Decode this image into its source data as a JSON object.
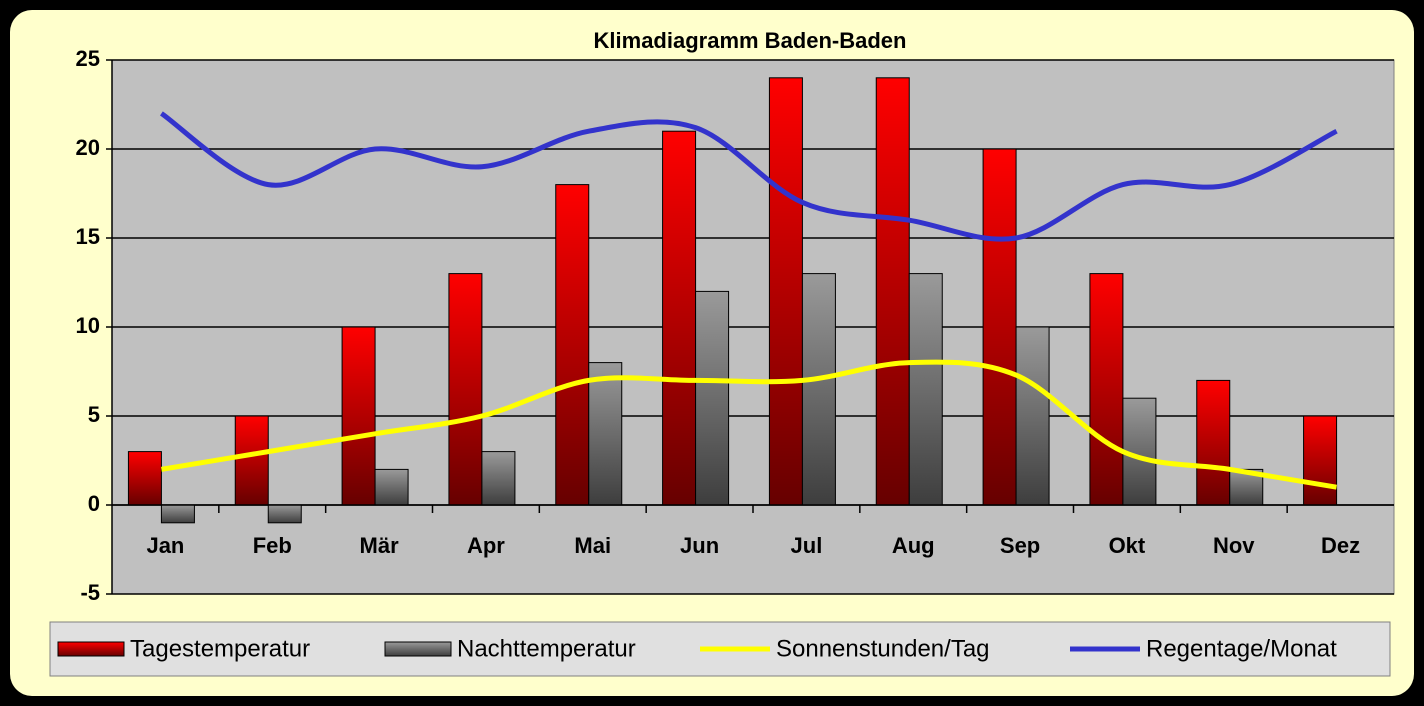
{
  "chart_data": {
    "type": "combo",
    "title": "Klimadiagramm Baden-Baden",
    "categories": [
      "Jan",
      "Feb",
      "Mär",
      "Apr",
      "Mai",
      "Jun",
      "Jul",
      "Aug",
      "Sep",
      "Okt",
      "Nov",
      "Dez"
    ],
    "series": [
      {
        "name": "Tagestemperatur",
        "type": "bar",
        "color": "#ff0000",
        "values": [
          3,
          5,
          10,
          13,
          18,
          21,
          24,
          24,
          20,
          13,
          7,
          5
        ]
      },
      {
        "name": "Nachttemperatur",
        "type": "bar",
        "color": "#9a9a9a",
        "values": [
          -1,
          -1,
          2,
          3,
          8,
          12,
          13,
          13,
          10,
          6,
          2,
          0
        ]
      },
      {
        "name": "Sonnenstunden/Tag",
        "type": "line",
        "color": "#ffff00",
        "values": [
          2,
          3,
          4,
          5,
          7,
          7,
          7,
          8,
          7.3,
          3,
          2,
          1
        ]
      },
      {
        "name": "Regentage/Monat",
        "type": "line",
        "color": "#3333cc",
        "values": [
          22,
          18,
          20,
          19,
          21,
          21.2,
          17,
          16,
          15,
          18,
          18,
          21
        ]
      }
    ],
    "ylim": [
      -5,
      25
    ],
    "yticks": [
      -5,
      0,
      5,
      10,
      15,
      20,
      25
    ],
    "grid": true,
    "legend": "bottom"
  }
}
